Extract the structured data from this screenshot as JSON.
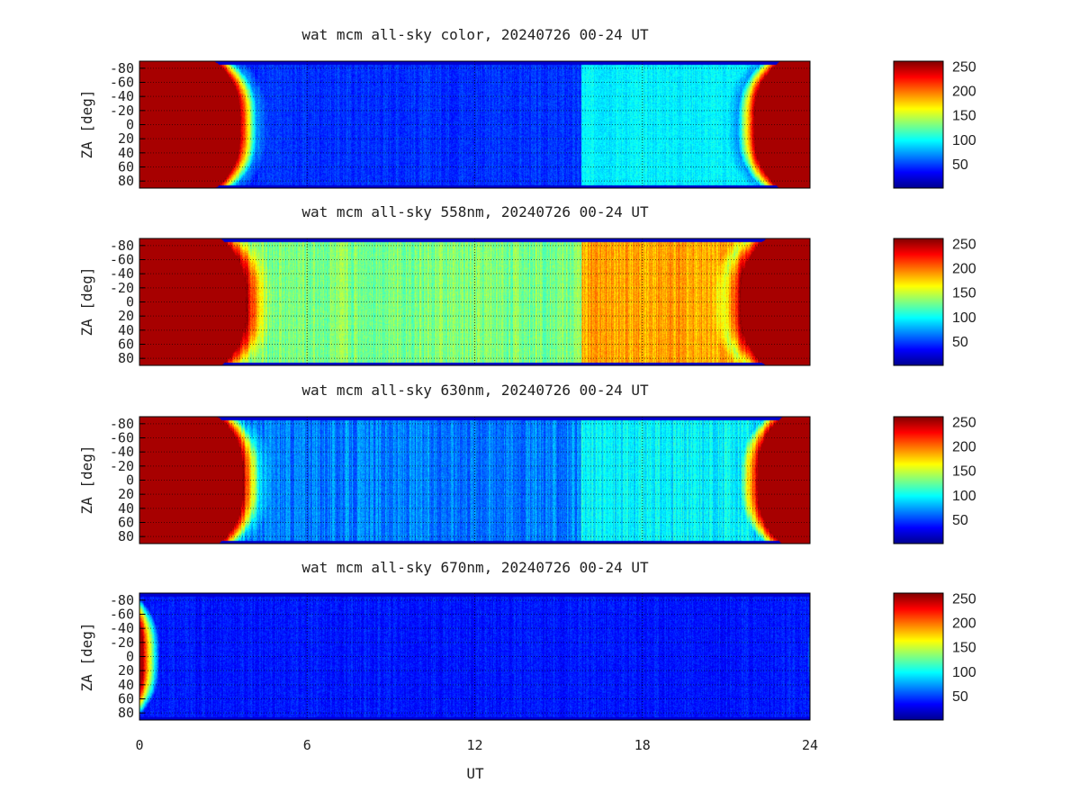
{
  "chart_data": [
    {
      "type": "heatmap",
      "title": "wat mcm all-sky color, 20240726 00-24 UT",
      "ylabel": "ZA [deg]",
      "xlabel": "",
      "x_ticks": [],
      "y_ticks": [
        "-80",
        "-60",
        "-40",
        "-20",
        "0",
        "20",
        "40",
        "60",
        "80"
      ],
      "xlim": [
        0,
        24
      ],
      "ylim": [
        -90,
        90
      ],
      "colorbar_ticks": [
        "50",
        "100",
        "150",
        "200",
        "250"
      ],
      "colorbar_range": [
        0,
        260
      ],
      "grid": true,
      "profile": {
        "day_left": 3.6,
        "day_right": 22.0,
        "night_base": 45,
        "base_2": 95,
        "twilight_min": 70,
        "stripes": false
      }
    },
    {
      "type": "heatmap",
      "title": "wat mcm all-sky 558nm, 20240726 00-24 UT",
      "ylabel": "ZA [deg]",
      "xlabel": "",
      "x_ticks": [],
      "y_ticks": [
        "-80",
        "-60",
        "-40",
        "-20",
        "0",
        "20",
        "40",
        "60",
        "80"
      ],
      "xlim": [
        0,
        24
      ],
      "ylim": [
        -90,
        90
      ],
      "colorbar_ticks": [
        "50",
        "100",
        "150",
        "200",
        "250"
      ],
      "colorbar_range": [
        0,
        260
      ],
      "grid": true,
      "profile": {
        "day_left": 3.8,
        "day_right": 21.5,
        "night_base": 130,
        "base_2": 185,
        "twilight_min": 150,
        "stripes": true
      }
    },
    {
      "type": "heatmap",
      "title": "wat mcm all-sky 630nm, 20240726 00-24 UT",
      "ylabel": "ZA [deg]",
      "xlabel": "",
      "x_ticks": [],
      "y_ticks": [
        "-80",
        "-60",
        "-40",
        "-20",
        "0",
        "20",
        "40",
        "60",
        "80"
      ],
      "xlim": [
        0,
        24
      ],
      "ylim": [
        -90,
        90
      ],
      "colorbar_ticks": [
        "50",
        "100",
        "150",
        "200",
        "250"
      ],
      "colorbar_range": [
        0,
        260
      ],
      "grid": true,
      "profile": {
        "day_left": 3.7,
        "day_right": 22.1,
        "night_base": 65,
        "base_2": 95,
        "twilight_min": 90,
        "stripes": true
      }
    },
    {
      "type": "heatmap",
      "title": "wat mcm all-sky 670nm, 20240726 00-24 UT",
      "ylabel": "ZA [deg]",
      "xlabel": "UT",
      "x_ticks": [
        "0",
        "6",
        "12",
        "18",
        "24"
      ],
      "y_ticks": [
        "-80",
        "-60",
        "-40",
        "-20",
        "0",
        "20",
        "40",
        "60",
        "80"
      ],
      "xlim": [
        0,
        24
      ],
      "ylim": [
        -90,
        90
      ],
      "colorbar_ticks": [
        "50",
        "100",
        "150",
        "200",
        "250"
      ],
      "colorbar_range": [
        0,
        260
      ],
      "grid": true,
      "profile": {
        "day_left": 0.1,
        "day_right": 24.5,
        "night_base": 38,
        "base_2": 38,
        "twilight_min": 38,
        "stripes": false
      }
    }
  ]
}
